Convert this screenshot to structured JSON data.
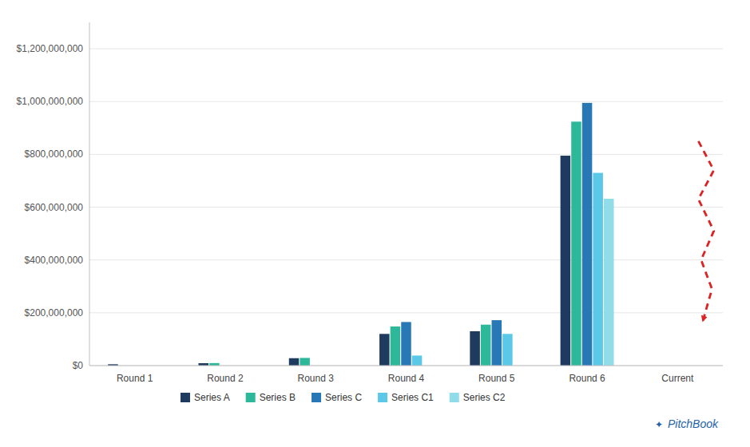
{
  "chart_data": {
    "type": "bar",
    "categories": [
      "Round 1",
      "Round 2",
      "Round 3",
      "Round 4",
      "Round 5",
      "Round 6",
      "Current"
    ],
    "series": [
      {
        "name": "Series A",
        "color": "#1e3a5f",
        "values": [
          5000000,
          9000000,
          28000000,
          120000000,
          130000000,
          795000000,
          0
        ]
      },
      {
        "name": "Series B",
        "color": "#2db89a",
        "values": [
          0,
          9500000,
          29000000,
          148000000,
          155000000,
          924000000,
          0
        ]
      },
      {
        "name": "Series C",
        "color": "#2878b5",
        "values": [
          0,
          0,
          0,
          165000000,
          172000000,
          995000000,
          0
        ]
      },
      {
        "name": "Series C1",
        "color": "#5bc8e8",
        "values": [
          0,
          0,
          0,
          38000000,
          120000000,
          730000000,
          0
        ]
      },
      {
        "name": "Series C2",
        "color": "#90dce8",
        "values": [
          0,
          0,
          0,
          0,
          0,
          632000000,
          0
        ]
      }
    ],
    "ylim": [
      0,
      1300000000
    ],
    "yticks": [
      {
        "value": 0,
        "label": "$0"
      },
      {
        "value": 200000000,
        "label": "$200,000,000"
      },
      {
        "value": 400000000,
        "label": "$400,000,000"
      },
      {
        "value": 600000000,
        "label": "$600,000,000"
      },
      {
        "value": 800000000,
        "label": "$800,000,000"
      },
      {
        "value": 1000000000,
        "label": "$1,000,000,000"
      },
      {
        "value": 1200000000,
        "label": "$1,200,000,000"
      }
    ],
    "grid": true,
    "legend": "bottom",
    "annotations": [
      "✦",
      "PitchBook"
    ]
  }
}
